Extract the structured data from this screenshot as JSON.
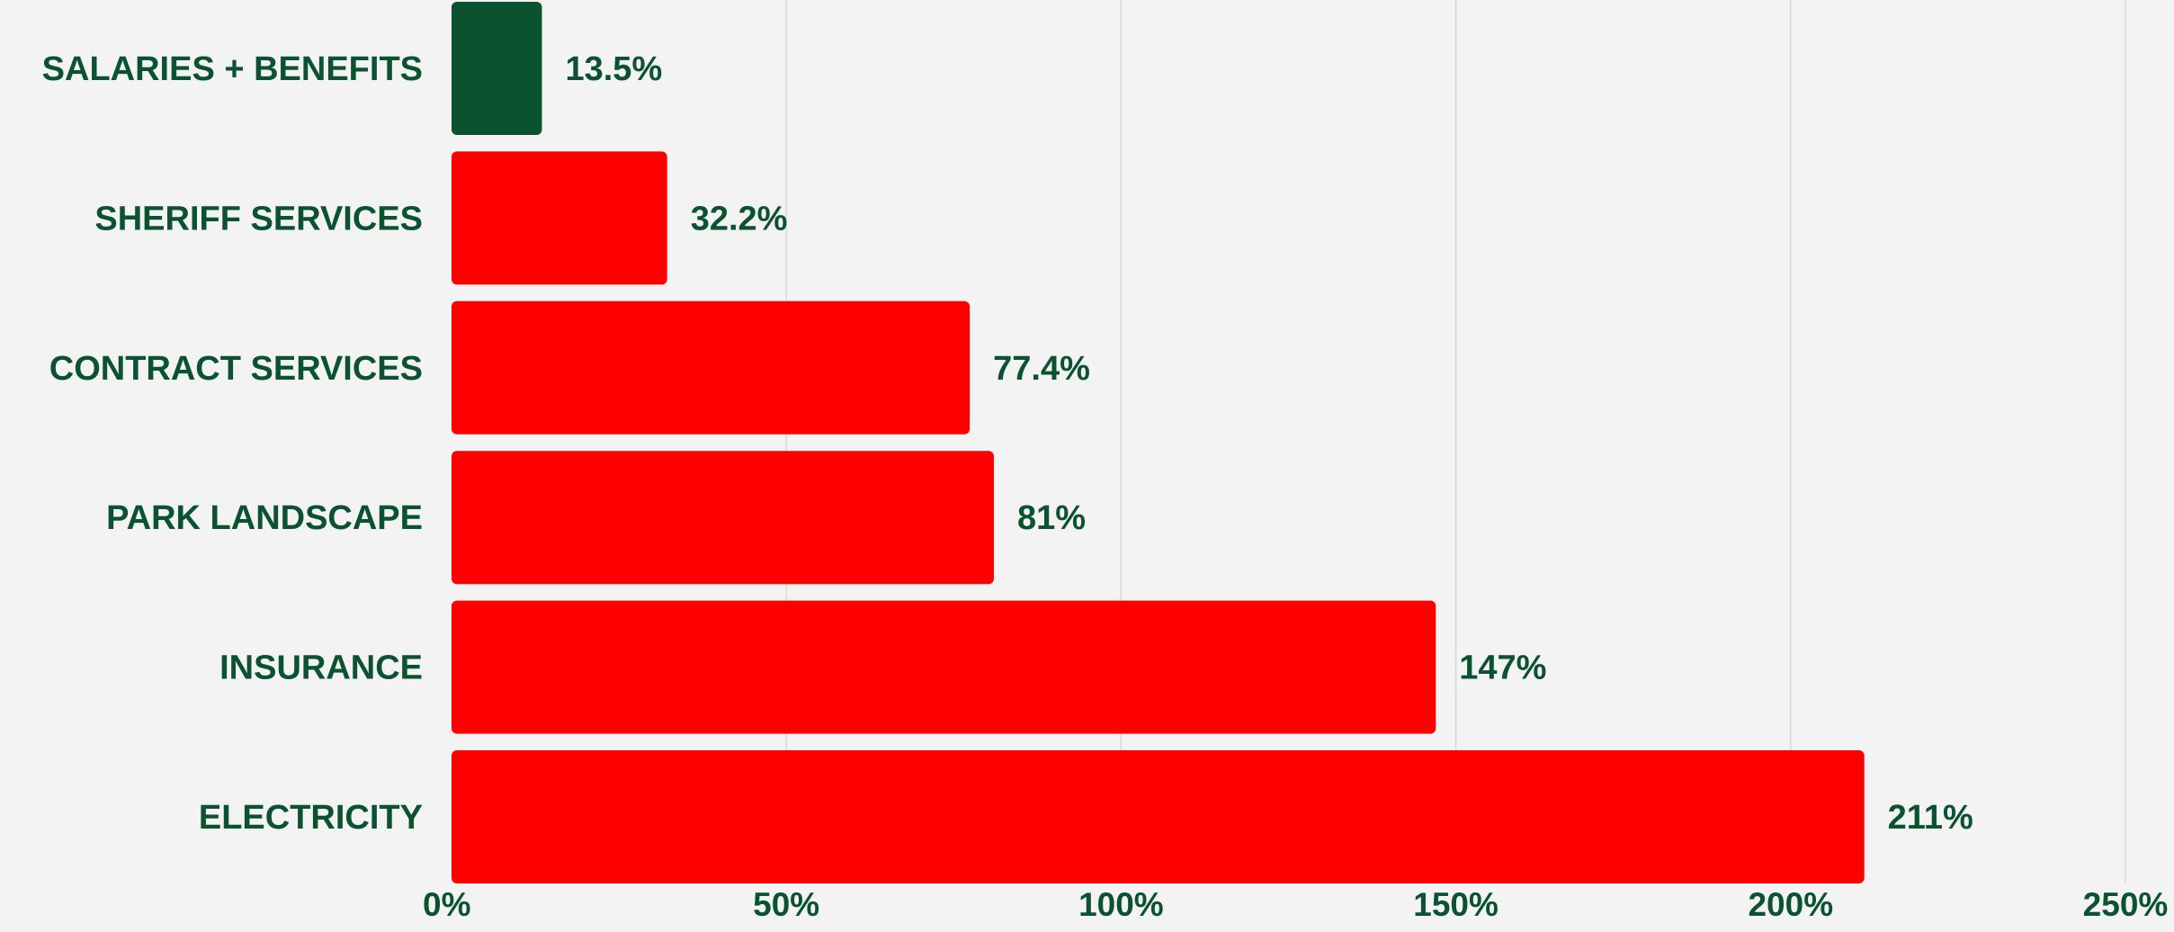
{
  "colors": {
    "background": "#f3f3f3",
    "text": "#0b5230",
    "grid": "#d9d9d9",
    "bar_default": "#ff0000",
    "bar_highlight": "#0b5230"
  },
  "chart_data": {
    "type": "bar",
    "orientation": "horizontal",
    "categories": [
      "SALARIES + BENEFITS",
      "SHERIFF SERVICES",
      "CONTRACT SERVICES",
      "PARK LANDSCAPE",
      "INSURANCE",
      "ELECTRICITY"
    ],
    "values": [
      13.5,
      32.2,
      77.4,
      81,
      147,
      211
    ],
    "value_labels": [
      "13.5%",
      "32.2%",
      "77.4%",
      "81%",
      "147%",
      "211%"
    ],
    "bar_colors": [
      "#0b5230",
      "#ff0000",
      "#ff0000",
      "#ff0000",
      "#ff0000",
      "#ff0000"
    ],
    "x_ticks": [
      0,
      50,
      100,
      150,
      200,
      250
    ],
    "x_tick_labels": [
      "0%",
      "50%",
      "100%",
      "150%",
      "200%",
      "250%"
    ],
    "xlim": [
      0,
      250
    ],
    "grid": "vertical",
    "legend": "none"
  }
}
